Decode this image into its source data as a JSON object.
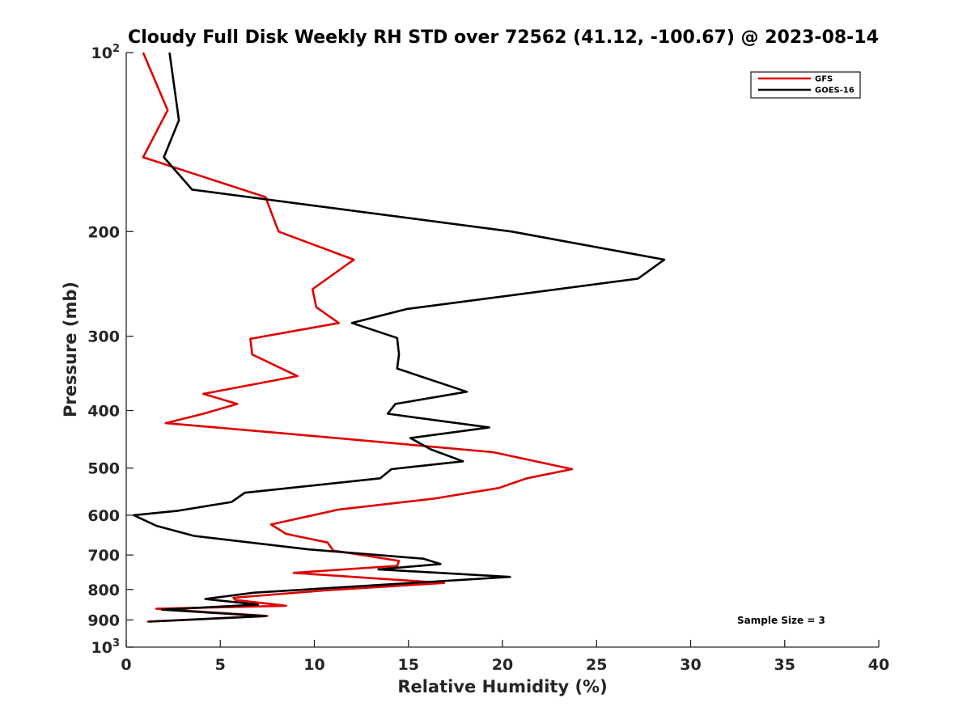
{
  "chart_data": {
    "type": "line",
    "title": "Cloudy Full Disk Weekly RH STD over 72562 (41.12, -100.67) @ 2023-08-14",
    "xlabel": "Relative Humidity (%)",
    "ylabel": "Pressure (mb)",
    "xlim": [
      0,
      40
    ],
    "ylim": [
      100,
      1000
    ],
    "yscale": "log",
    "yreversed": true,
    "x_ticks": [
      "0",
      "5",
      "10",
      "15",
      "20",
      "25",
      "30",
      "35",
      "40"
    ],
    "y_ticks": [
      {
        "value": 100,
        "base": "10",
        "exp": "2"
      },
      {
        "value": 200,
        "label": "200"
      },
      {
        "value": 300,
        "label": "300"
      },
      {
        "value": 400,
        "label": "400"
      },
      {
        "value": 500,
        "label": "500"
      },
      {
        "value": 600,
        "label": "600"
      },
      {
        "value": 700,
        "label": "700"
      },
      {
        "value": 800,
        "label": "800"
      },
      {
        "value": 900,
        "label": "900"
      },
      {
        "value": 1000,
        "base": "10",
        "exp": "3"
      }
    ],
    "legend_position": "top-right",
    "annotation": "Sample Size = 3",
    "series": [
      {
        "name": "GFS",
        "color": "#e00000",
        "points": [
          [
            0.9,
            100
          ],
          [
            2.2,
            125
          ],
          [
            0.9,
            150
          ],
          [
            7.4,
            175
          ],
          [
            8.1,
            200
          ],
          [
            12.1,
            223
          ],
          [
            9.9,
            250
          ],
          [
            10.1,
            268
          ],
          [
            11.3,
            285
          ],
          [
            6.6,
            303
          ],
          [
            6.7,
            322
          ],
          [
            9.1,
            350
          ],
          [
            4.1,
            375
          ],
          [
            5.9,
            390
          ],
          [
            4.1,
            405
          ],
          [
            2.1,
            420
          ],
          [
            8.4,
            437
          ],
          [
            19.5,
            470
          ],
          [
            21.9,
            488
          ],
          [
            23.7,
            502
          ],
          [
            21.3,
            520
          ],
          [
            19.8,
            540
          ],
          [
            16.3,
            563
          ],
          [
            11.3,
            587
          ],
          [
            7.7,
            622
          ],
          [
            8.5,
            645
          ],
          [
            10.7,
            667
          ],
          [
            11.0,
            688
          ],
          [
            14.5,
            716
          ],
          [
            14.4,
            730
          ],
          [
            8.9,
            750
          ],
          [
            16.9,
            780
          ],
          [
            10.5,
            803
          ],
          [
            5.7,
            826
          ],
          [
            5.8,
            833
          ],
          [
            8.5,
            852
          ],
          [
            1.6,
            862
          ],
          [
            7.5,
            886
          ],
          [
            1.1,
            906
          ]
        ]
      },
      {
        "name": "GOES-16",
        "color": "#000000",
        "points": [
          [
            2.3,
            100
          ],
          [
            2.8,
            130
          ],
          [
            2.0,
            150
          ],
          [
            3.5,
            170
          ],
          [
            20.5,
            200
          ],
          [
            28.6,
            223
          ],
          [
            27.2,
            240
          ],
          [
            14.9,
            270
          ],
          [
            12.0,
            285
          ],
          [
            14.4,
            302
          ],
          [
            14.5,
            322
          ],
          [
            14.4,
            340
          ],
          [
            18.1,
            372
          ],
          [
            14.3,
            390
          ],
          [
            13.9,
            405
          ],
          [
            19.3,
            427
          ],
          [
            15.1,
            445
          ],
          [
            16.2,
            465
          ],
          [
            17.9,
            487
          ],
          [
            14.1,
            502
          ],
          [
            13.5,
            520
          ],
          [
            6.3,
            550
          ],
          [
            5.6,
            570
          ],
          [
            2.7,
            590
          ],
          [
            0.4,
            600
          ],
          [
            1.6,
            625
          ],
          [
            3.6,
            650
          ],
          [
            9.7,
            685
          ],
          [
            15.8,
            710
          ],
          [
            16.7,
            725
          ],
          [
            13.4,
            740
          ],
          [
            20.4,
            762
          ],
          [
            6.8,
            810
          ],
          [
            4.2,
            830
          ],
          [
            7.0,
            848
          ],
          [
            1.9,
            865
          ],
          [
            7.4,
            887
          ],
          [
            1.2,
            906
          ]
        ]
      }
    ]
  }
}
